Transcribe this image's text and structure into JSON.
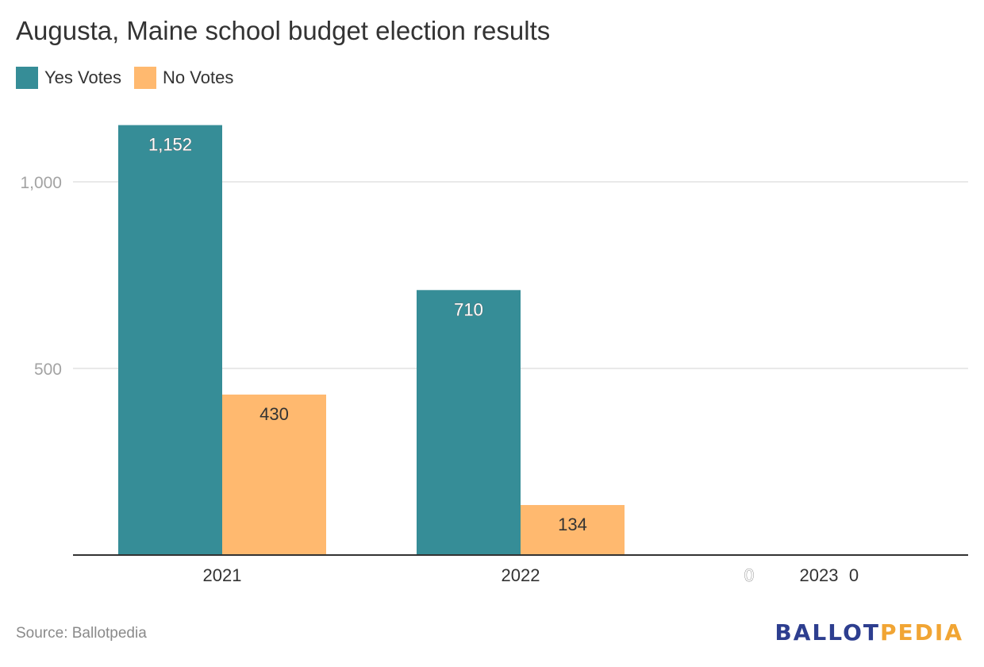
{
  "title": "Augusta, Maine school budget election results",
  "legend": [
    {
      "label": "Yes Votes",
      "color": "#368d97"
    },
    {
      "label": "No Votes",
      "color": "#ffb96f"
    }
  ],
  "source": "Source: Ballotpedia",
  "logo": {
    "part1": "BALLOT",
    "part2": "PEDIA"
  },
  "chart_data": {
    "type": "bar",
    "title": "Augusta, Maine school budget election results",
    "categories": [
      "2021",
      "2022",
      "2023"
    ],
    "series": [
      {
        "name": "Yes Votes",
        "color": "#368d97",
        "values": [
          1152,
          710,
          0
        ],
        "labels": [
          "1,152",
          "710",
          "0"
        ]
      },
      {
        "name": "No Votes",
        "color": "#ffb96f",
        "values": [
          430,
          134,
          0
        ],
        "labels": [
          "430",
          "134",
          "0"
        ]
      }
    ],
    "ylim": [
      0,
      1200
    ],
    "yticks": [
      500,
      1000
    ],
    "ytick_labels": [
      "500",
      "1,000"
    ],
    "grid": true,
    "legend_position": "top-left"
  }
}
